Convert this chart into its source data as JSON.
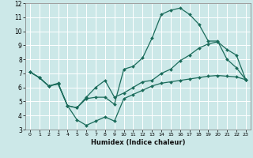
{
  "title": "",
  "xlabel": "Humidex (Indice chaleur)",
  "bg_color": "#cce8e8",
  "grid_color": "#ffffff",
  "line_color": "#1a6b5a",
  "xlim": [
    -0.5,
    23.5
  ],
  "ylim": [
    3,
    12
  ],
  "xticks": [
    0,
    1,
    2,
    3,
    4,
    5,
    6,
    7,
    8,
    9,
    10,
    11,
    12,
    13,
    14,
    15,
    16,
    17,
    18,
    19,
    20,
    21,
    22,
    23
  ],
  "yticks": [
    3,
    4,
    5,
    6,
    7,
    8,
    9,
    10,
    11,
    12
  ],
  "line1_x": [
    0,
    1,
    2,
    3,
    4,
    5,
    6,
    7,
    8,
    9,
    10,
    11,
    12,
    13,
    14,
    15,
    16,
    17,
    18,
    19,
    20,
    21,
    22,
    23
  ],
  "line1_y": [
    7.1,
    6.7,
    6.1,
    6.3,
    4.7,
    4.55,
    5.2,
    5.3,
    5.3,
    4.8,
    7.3,
    7.5,
    8.1,
    9.5,
    11.2,
    11.5,
    11.65,
    11.2,
    10.5,
    9.3,
    9.3,
    8.0,
    7.4,
    6.55
  ],
  "line2_x": [
    0,
    1,
    2,
    3,
    4,
    5,
    6,
    7,
    8,
    9,
    10,
    11,
    12,
    13,
    14,
    15,
    16,
    17,
    18,
    19,
    20,
    21,
    22,
    23
  ],
  "line2_y": [
    7.1,
    6.7,
    6.1,
    6.25,
    4.7,
    4.55,
    5.3,
    6.0,
    6.5,
    5.3,
    5.6,
    6.0,
    6.4,
    6.5,
    7.0,
    7.3,
    7.9,
    8.3,
    8.8,
    9.1,
    9.25,
    8.7,
    8.3,
    6.55
  ],
  "line3_x": [
    0,
    1,
    2,
    3,
    4,
    5,
    6,
    7,
    8,
    9,
    10,
    11,
    12,
    13,
    14,
    15,
    16,
    17,
    18,
    19,
    20,
    21,
    22,
    23
  ],
  "line3_y": [
    7.1,
    6.7,
    6.1,
    6.25,
    4.7,
    3.7,
    3.3,
    3.6,
    3.9,
    3.6,
    5.2,
    5.5,
    5.8,
    6.1,
    6.3,
    6.4,
    6.5,
    6.6,
    6.7,
    6.8,
    6.85,
    6.8,
    6.75,
    6.55
  ],
  "xlabel_fontsize": 6.0,
  "tick_fontsize_x": 4.5,
  "tick_fontsize_y": 5.5,
  "linewidth": 0.9,
  "markersize": 2.0
}
